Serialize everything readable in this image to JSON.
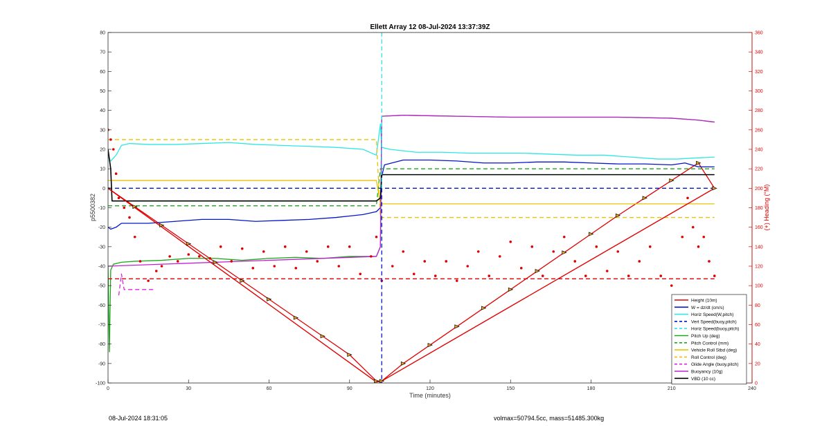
{
  "footer": {
    "timestamp": "08-Jul-2024 18:31:05",
    "mass_info": "volmax=50794.5cc, mass=51485.300kg"
  },
  "chart_data": {
    "type": "line",
    "title": "Ellett Array 12 08-Jul-2024 13:37:39Z",
    "xlabel": "Time (minutes)",
    "ylabel": "p5500382",
    "y2label": "(+) Heading (°M)",
    "xlim": [
      0,
      240
    ],
    "ylim": [
      -100,
      80
    ],
    "y2lim": [
      0,
      360
    ],
    "xticks": [
      0,
      30,
      60,
      90,
      120,
      150,
      180,
      210,
      240
    ],
    "yticks": [
      -100,
      -90,
      -80,
      -70,
      -60,
      -50,
      -40,
      -30,
      -20,
      -10,
      0,
      10,
      20,
      30,
      40,
      50,
      60,
      70,
      80
    ],
    "y2ticks": [
      0,
      20,
      40,
      60,
      80,
      100,
      120,
      140,
      160,
      180,
      200,
      220,
      240,
      260,
      280,
      300,
      320,
      340,
      360
    ],
    "grid": false,
    "legend_position": "bottom-right",
    "apogee_marker_x": 102,
    "legend": [
      {
        "name": "Height (10m)",
        "color": "#e00000",
        "dash": "solid"
      },
      {
        "name": "W = dz/dt (cm/s)",
        "color": "#0016c8",
        "dash": "solid"
      },
      {
        "name": "Horiz Speed(W,pitch)",
        "color": "#2ee6e6",
        "dash": "solid"
      },
      {
        "name": "Vert Speed(buoy,pitch)",
        "color": "#0016c8",
        "dash": "dashed"
      },
      {
        "name": "Horiz Speed(buoy,pitch)",
        "color": "#2ee6e6",
        "dash": "dashed"
      },
      {
        "name": "Pitch Up (deg)",
        "color": "#1aa81a",
        "dash": "solid"
      },
      {
        "name": "Pitch Control (mm)",
        "color": "#1aa81a",
        "dash": "dashed"
      },
      {
        "name": "Vehicle Roll Stbd (deg)",
        "color": "#e6c400",
        "dash": "solid"
      },
      {
        "name": "Roll Control (deg)",
        "color": "#e6c400",
        "dash": "dashed"
      },
      {
        "name": "Glide Angle (buoy,pitch)",
        "color": "#e020e0",
        "dash": "dashed"
      },
      {
        "name": "Buoyancy (10g)",
        "color": "#c020d0",
        "dash": "solid"
      },
      {
        "name": "VBD (10 cc)",
        "color": "#000000",
        "dash": "solid"
      }
    ],
    "series": [
      {
        "name": "Height (10m)",
        "axis": "left",
        "x": [
          0,
          10,
          20,
          30,
          40,
          50,
          60,
          70,
          80,
          90,
          100,
          102,
          110,
          120,
          130,
          140,
          150,
          160,
          170,
          180,
          190,
          200,
          210,
          220,
          226
        ],
        "y": [
          0,
          -9.5,
          -19,
          -28.5,
          -38,
          -47.5,
          -57,
          -66.5,
          -76,
          -85.5,
          -99,
          -99,
          -90,
          -80.5,
          -71,
          -61.5,
          -52,
          -42.5,
          -33,
          -23.5,
          -14,
          -5,
          4,
          13,
          0
        ]
      },
      {
        "name": "Height (10m) path",
        "axis": "left",
        "x": [
          0,
          100,
          101,
          102,
          226
        ],
        "y": [
          0,
          -99.5,
          -99.3,
          -99,
          0
        ]
      },
      {
        "name": "W = dz/dt (cm/s)",
        "axis": "left",
        "x": [
          0,
          1,
          3,
          5,
          8,
          15,
          25,
          35,
          45,
          55,
          65,
          75,
          85,
          95,
          100,
          101.5,
          102,
          103,
          110,
          120,
          130,
          140,
          150,
          160,
          170,
          180,
          190,
          200,
          210,
          215,
          220,
          226
        ],
        "y": [
          -20,
          -21,
          -20,
          -18,
          -18,
          -18,
          -17,
          -16,
          -16,
          -17,
          -16.5,
          -16,
          -15,
          -13.5,
          -12,
          -10,
          6,
          12,
          14.5,
          14.5,
          14,
          13,
          13,
          13.5,
          13.5,
          13,
          12.5,
          12.5,
          12,
          13,
          11,
          11
        ]
      },
      {
        "name": "Horiz Speed(W,pitch)",
        "axis": "left",
        "x": [
          0,
          1,
          3,
          5,
          8,
          15,
          25,
          35,
          45,
          55,
          65,
          75,
          85,
          95,
          100,
          101.5,
          102,
          105,
          115,
          125,
          135,
          145,
          155,
          165,
          175,
          185,
          195,
          205,
          212,
          218,
          226
        ],
        "y": [
          16,
          14,
          17,
          22,
          23,
          22.5,
          22.5,
          23,
          23.5,
          22.5,
          22,
          21.5,
          21,
          20,
          17,
          33,
          21,
          20,
          18.5,
          18.5,
          18,
          18,
          18,
          17.5,
          17,
          17,
          16,
          15,
          15,
          15.5,
          16
        ]
      },
      {
        "name": "Vert Speed(buoy,pitch)",
        "axis": "left",
        "x": [
          0,
          101,
          101,
          226
        ],
        "y": [
          0,
          0,
          0,
          0
        ]
      },
      {
        "name": "Pitch Up (deg)",
        "axis": "left",
        "x": [
          0,
          0.5,
          1,
          2,
          5,
          10,
          20,
          30,
          40,
          50,
          60,
          70,
          80,
          90,
          100,
          101.5,
          102,
          110,
          130,
          150,
          170,
          190,
          210,
          220,
          226
        ],
        "y": [
          -40,
          -84,
          -42,
          -39,
          -38,
          -37.5,
          -37,
          -36,
          -36,
          -37,
          -36,
          -35.5,
          -36,
          -35,
          -35,
          -30,
          37,
          37.5,
          37,
          36.5,
          36.5,
          36.5,
          36,
          35,
          34
        ]
      },
      {
        "name": "Pitch Control (mm)",
        "axis": "left",
        "x": [
          0,
          100,
          101.5,
          226
        ],
        "y": [
          -9,
          -9,
          10,
          10
        ]
      },
      {
        "name": "Vehicle Roll Stbd (deg)",
        "axis": "left",
        "x": [
          0,
          100,
          101.5,
          226
        ],
        "y": [
          4,
          4,
          -8,
          -8
        ]
      },
      {
        "name": "Roll Control (deg)",
        "axis": "left",
        "x": [
          0,
          100,
          101.5,
          226
        ],
        "y": [
          25,
          25,
          -15,
          -15
        ]
      },
      {
        "name": "Glide Angle (buoy,pitch)",
        "axis": "left",
        "x": [
          4,
          5,
          6,
          17
        ],
        "y": [
          -55,
          -44,
          -52,
          -52
        ]
      },
      {
        "name": "Buoyancy (10g)",
        "axis": "left",
        "x": [
          0,
          100,
          101.5,
          102,
          110,
          130,
          150,
          170,
          190,
          210,
          220,
          226
        ],
        "y": [
          -40,
          -35,
          -30,
          37,
          37.5,
          37,
          36.5,
          36.5,
          36.5,
          36,
          35,
          34
        ]
      },
      {
        "name": "VBD (10 cc)",
        "axis": "left",
        "x": [
          0,
          1,
          1.5,
          100,
          101.5,
          102,
          226
        ],
        "y": [
          20,
          10,
          -6.5,
          -6.5,
          -5,
          7,
          7
        ]
      },
      {
        "name": "Heading (points)",
        "axis": "right",
        "marker": "dot",
        "x": [
          0,
          1,
          2,
          3,
          4,
          6,
          8,
          10,
          12,
          15,
          18,
          20,
          23,
          26,
          30,
          34,
          38,
          42,
          46,
          50,
          54,
          58,
          62,
          66,
          70,
          74,
          78,
          82,
          86,
          90,
          94,
          98,
          100,
          102,
          106,
          110,
          114,
          118,
          122,
          126,
          130,
          134,
          138,
          142,
          146,
          150,
          154,
          158,
          162,
          166,
          170,
          174,
          178,
          182,
          186,
          190,
          194,
          198,
          202,
          206,
          210,
          214,
          216,
          218,
          220,
          222,
          224,
          226
        ],
        "y": [
          260,
          250,
          240,
          215,
          190,
          180,
          170,
          150,
          125,
          105,
          115,
          120,
          130,
          125,
          132,
          130,
          128,
          140,
          125,
          138,
          118,
          135,
          120,
          140,
          118,
          135,
          125,
          140,
          120,
          140,
          112,
          130,
          150,
          105,
          120,
          135,
          112,
          125,
          110,
          125,
          105,
          120,
          135,
          110,
          130,
          145,
          118,
          140,
          110,
          135,
          150,
          125,
          110,
          140,
          115,
          135,
          110,
          125,
          140,
          110,
          100,
          150,
          190,
          160,
          140,
          150,
          125,
          110
        ]
      },
      {
        "name": "Heading (mean)",
        "axis": "right",
        "dash": "dashed",
        "x": [
          0,
          226
        ],
        "y": [
          107,
          107
        ]
      }
    ]
  }
}
